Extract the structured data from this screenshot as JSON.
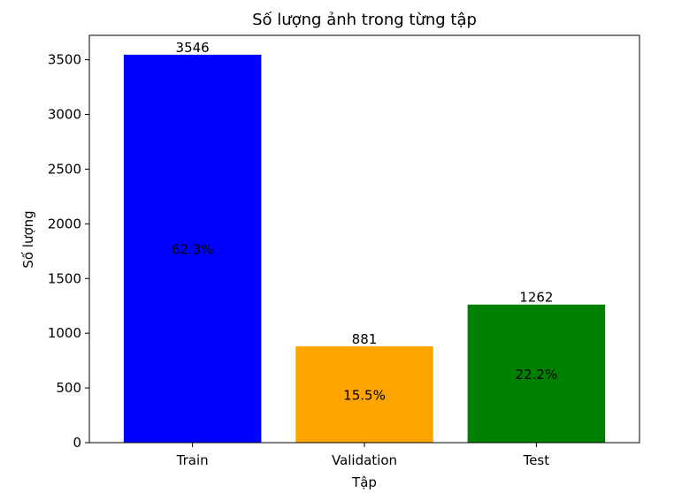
{
  "chart_data": {
    "type": "bar",
    "title": "Số lượng ảnh trong từng tập",
    "xlabel": "Tập",
    "ylabel": "Số lượng",
    "categories": [
      "Train",
      "Validation",
      "Test"
    ],
    "values": [
      3546,
      881,
      1262
    ],
    "value_labels": [
      "3546",
      "881",
      "1262"
    ],
    "percent_labels": [
      "62.3%",
      "15.5%",
      "22.2%"
    ],
    "colors": [
      "#0000ff",
      "#ffa500",
      "#008000"
    ],
    "ylim": [
      0,
      3723
    ],
    "yticks": [
      0,
      500,
      1000,
      1500,
      2000,
      2500,
      3000,
      3500
    ],
    "grid": false,
    "legend": "none"
  }
}
